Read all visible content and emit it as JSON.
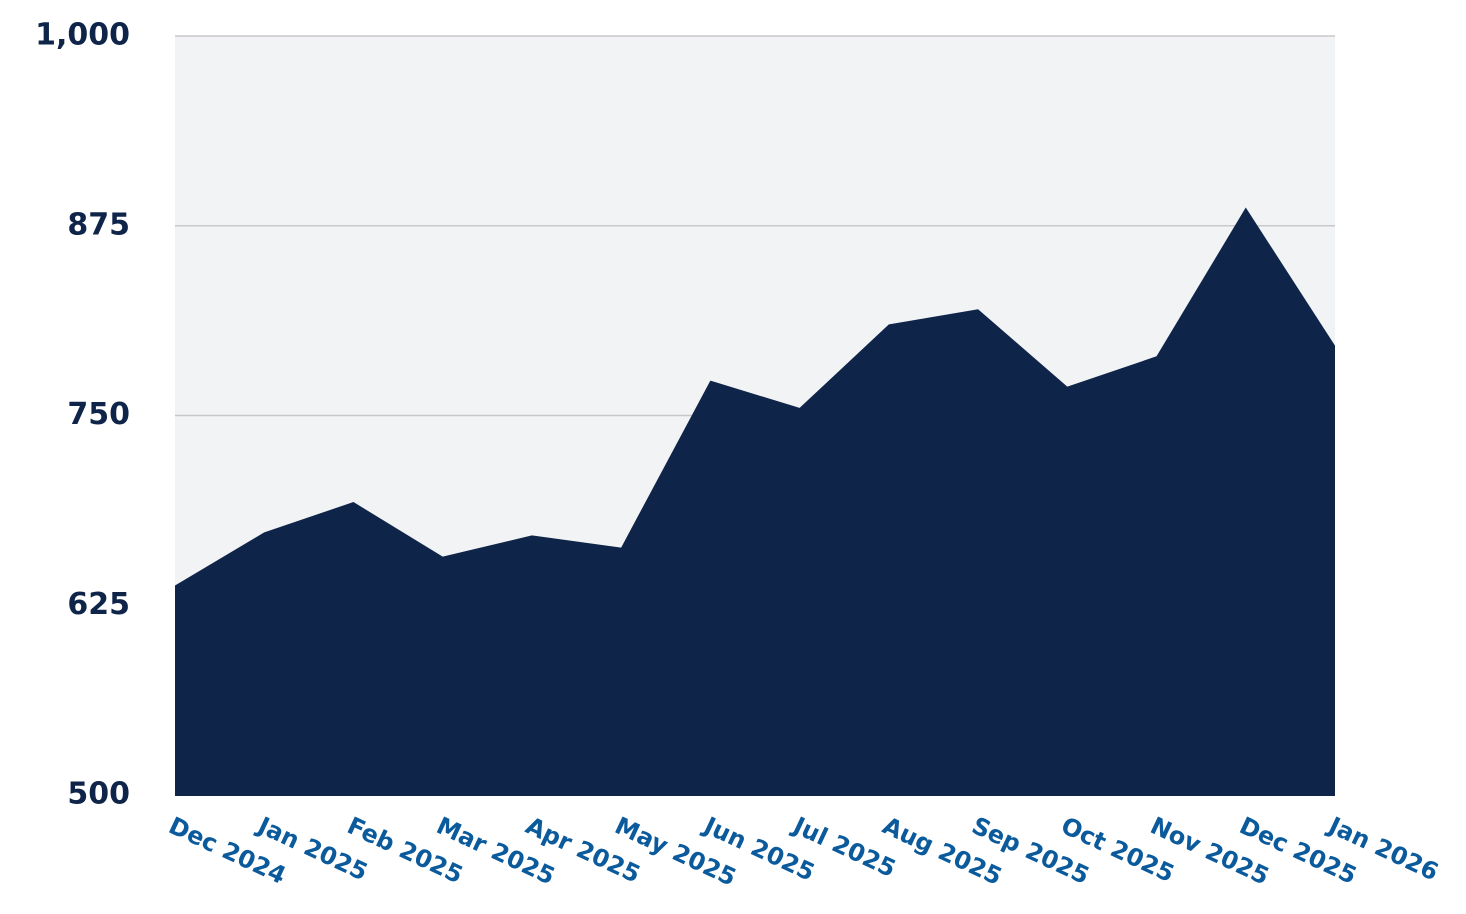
{
  "chart_data": {
    "type": "area",
    "categories": [
      "Dec 2024",
      "Jan 2025",
      "Feb 2025",
      "Mar 2025",
      "Apr 2025",
      "May 2025",
      "Jun 2025",
      "Jul 2025",
      "Aug 2025",
      "Sep 2025",
      "Oct 2025",
      "Nov 2025",
      "Dec 2025",
      "Jan 2026"
    ],
    "values": [
      638,
      673,
      693,
      657,
      671,
      663,
      773,
      755,
      810,
      820,
      769,
      789,
      887,
      796
    ],
    "color": "#0f2449",
    "ylim": [
      500,
      1000
    ],
    "yticks": [
      500,
      625,
      750,
      875,
      {
        "value": 1000,
        "label": "1,000"
      }
    ],
    "grid": true
  }
}
